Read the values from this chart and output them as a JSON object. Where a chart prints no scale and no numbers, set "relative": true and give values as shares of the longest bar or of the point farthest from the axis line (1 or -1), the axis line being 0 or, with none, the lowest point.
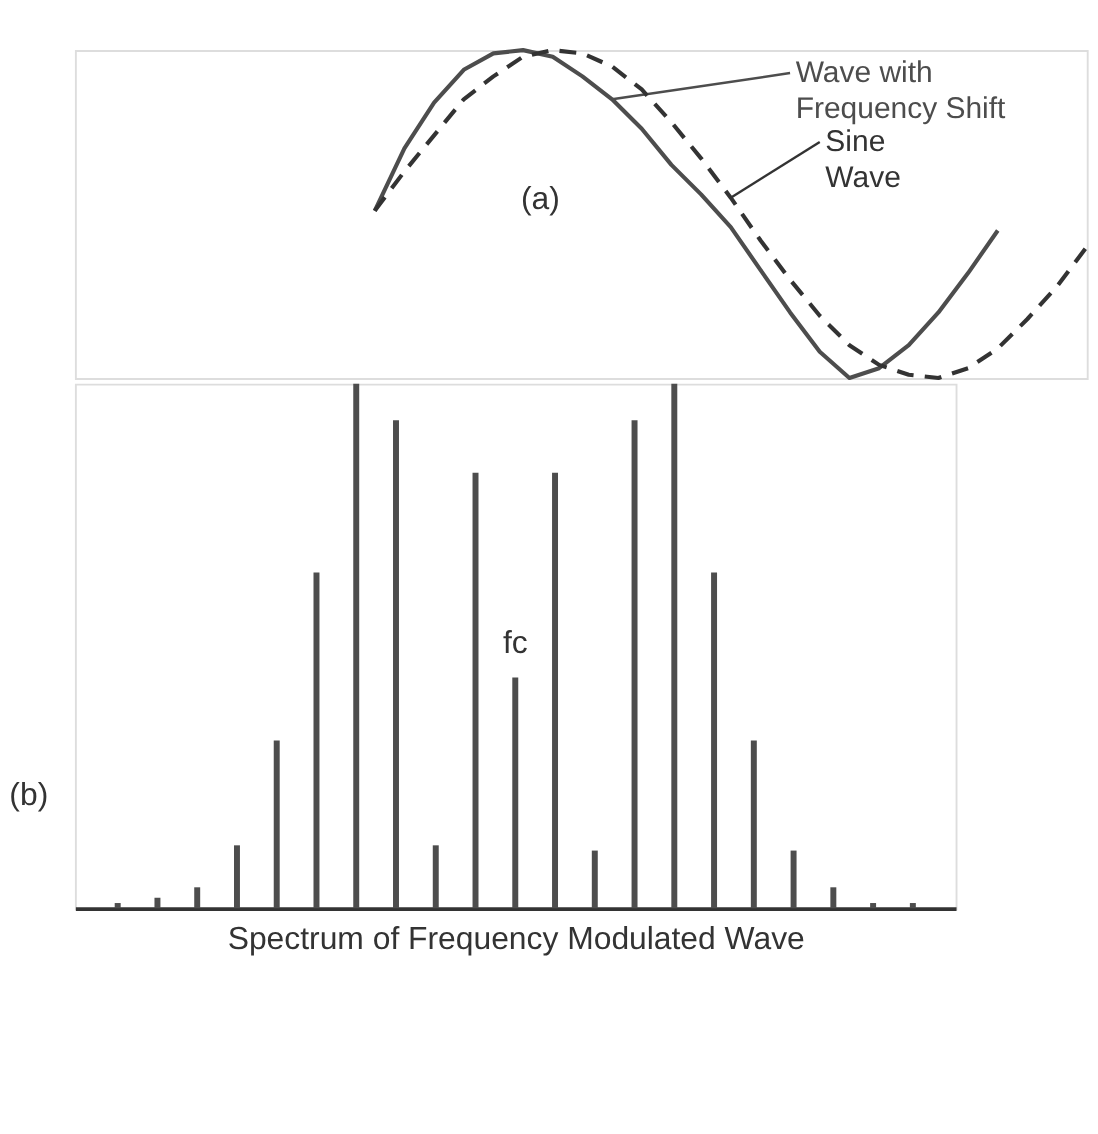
{
  "chart_data": [
    {
      "type": "line",
      "relative": true,
      "annotations": [
        "(a)"
      ],
      "categories": [
        null,
        null,
        null,
        null,
        null,
        null,
        null,
        null,
        null,
        null,
        null,
        null,
        null,
        null,
        null,
        null,
        null,
        null,
        null,
        null,
        null,
        null,
        null,
        null,
        null
      ],
      "series": [
        {
          "name": "Wave with Frequency Shift",
          "color": "#4d4d4d",
          "line_style": "solid",
          "values": [
            0.51,
            0.7,
            0.84,
            0.94,
            0.99,
            1.0,
            0.98,
            0.92,
            0.85,
            0.76,
            0.65,
            0.56,
            0.46,
            0.33,
            0.2,
            0.08,
            0.0,
            0.03,
            0.1,
            0.2,
            0.32,
            0.45,
            null,
            null,
            null
          ]
        },
        {
          "name": "Sine Wave",
          "color": "#333333",
          "line_style": "dashed",
          "values": [
            0.51,
            0.63,
            0.74,
            0.85,
            0.92,
            0.98,
            1.0,
            0.99,
            0.95,
            0.88,
            0.78,
            0.67,
            0.55,
            0.42,
            0.3,
            0.19,
            0.1,
            0.04,
            0.01,
            0.0,
            0.03,
            0.09,
            0.18,
            0.28,
            0.4
          ]
        }
      ]
    },
    {
      "type": "bar",
      "relative": true,
      "xlabel": "Spectrum of Frequency Modulated Wave",
      "annotations": [
        "fᴄ",
        "(b)"
      ],
      "categories": [
        null,
        null,
        null,
        null,
        null,
        null,
        null,
        null,
        null,
        null,
        null,
        null,
        null,
        null,
        null,
        null,
        null,
        null,
        null,
        null,
        null
      ],
      "values": [
        0.01,
        0.02,
        0.04,
        0.12,
        0.32,
        0.64,
        1.0,
        0.93,
        0.12,
        0.83,
        0.44,
        0.83,
        0.11,
        0.93,
        1.0,
        0.64,
        0.32,
        0.11,
        0.04,
        0.01,
        0.01
      ],
      "color": "#4d4d4d"
    }
  ]
}
